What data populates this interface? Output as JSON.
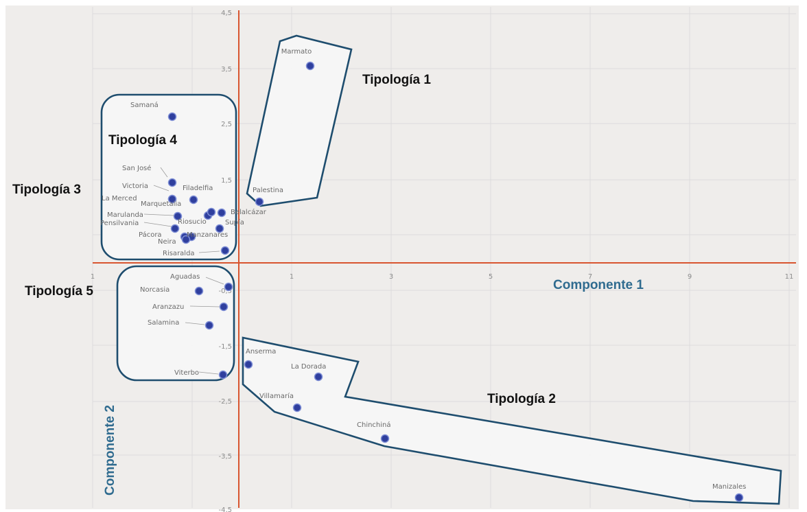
{
  "chart_data": {
    "type": "scatter",
    "xlabel": "Componente 1",
    "ylabel": "Componente 2",
    "xlim": [
      -1.5,
      11
    ],
    "ylim": [
      -4.5,
      4.5
    ],
    "x_ticks": [
      "1",
      "1",
      "3",
      "5",
      "7",
      "9",
      "11"
    ],
    "y_ticks": [
      "4,5",
      "3,5",
      "2,5",
      "1,5",
      "-0,5",
      "-1,5",
      "-2,5",
      "-3,5",
      "-4,5"
    ],
    "grid": true,
    "points": [
      {
        "label": "Marmato",
        "x": 1.4,
        "y": 3.6
      },
      {
        "label": "Palestina",
        "x": 0.4,
        "y": 1.1
      },
      {
        "label": "Samaná",
        "x": -1.3,
        "y": 2.7
      },
      {
        "label": "San José",
        "x": -1.3,
        "y": 1.5
      },
      {
        "label": "Victoria",
        "x": -1.3,
        "y": 1.3
      },
      {
        "label": "La Merced",
        "x": -1.3,
        "y": 1.2
      },
      {
        "label": "Filadelfia",
        "x": -0.9,
        "y": 1.2
      },
      {
        "label": "Marquetalia",
        "x": -0.6,
        "y": 1.0
      },
      {
        "label": "Belalcázar",
        "x": -0.3,
        "y": 0.95
      },
      {
        "label": "Marulanda",
        "x": -1.2,
        "y": 0.9
      },
      {
        "label": "Riosucio",
        "x": -0.6,
        "y": 0.9
      },
      {
        "label": "Supía",
        "x": -0.4,
        "y": 0.7
      },
      {
        "label": "Pensilvania",
        "x": -1.2,
        "y": 0.7
      },
      {
        "label": "Pácora",
        "x": -1.05,
        "y": 0.55
      },
      {
        "label": "Manzanares",
        "x": -0.95,
        "y": 0.55
      },
      {
        "label": "Neira",
        "x": -1.05,
        "y": 0.5
      },
      {
        "label": "Risaralda",
        "x": -0.25,
        "y": 0.25
      },
      {
        "label": "Aguadas",
        "x": -0.2,
        "y": -0.35
      },
      {
        "label": "Norcasia",
        "x": -0.8,
        "y": -0.45
      },
      {
        "label": "Aranzazu",
        "x": -0.3,
        "y": -0.75
      },
      {
        "label": "Salamina",
        "x": -0.55,
        "y": -1.1
      },
      {
        "label": "Viterbo",
        "x": -0.3,
        "y": -2.0
      },
      {
        "label": "Anserma",
        "x": 0.2,
        "y": -1.85
      },
      {
        "label": "La Dorada",
        "x": 1.6,
        "y": -2.0
      },
      {
        "label": "Villamaría",
        "x": 1.1,
        "y": -2.6
      },
      {
        "label": "Chinchiná",
        "x": 2.9,
        "y": -3.15
      },
      {
        "label": "Manizales",
        "x": 10.2,
        "y": -4.3
      }
    ],
    "groups": [
      {
        "name": "Tipología 1"
      },
      {
        "name": "Tipología 2"
      },
      {
        "name": "Tipología 3"
      },
      {
        "name": "Tipología 4"
      },
      {
        "name": "Tipología 5"
      }
    ]
  }
}
